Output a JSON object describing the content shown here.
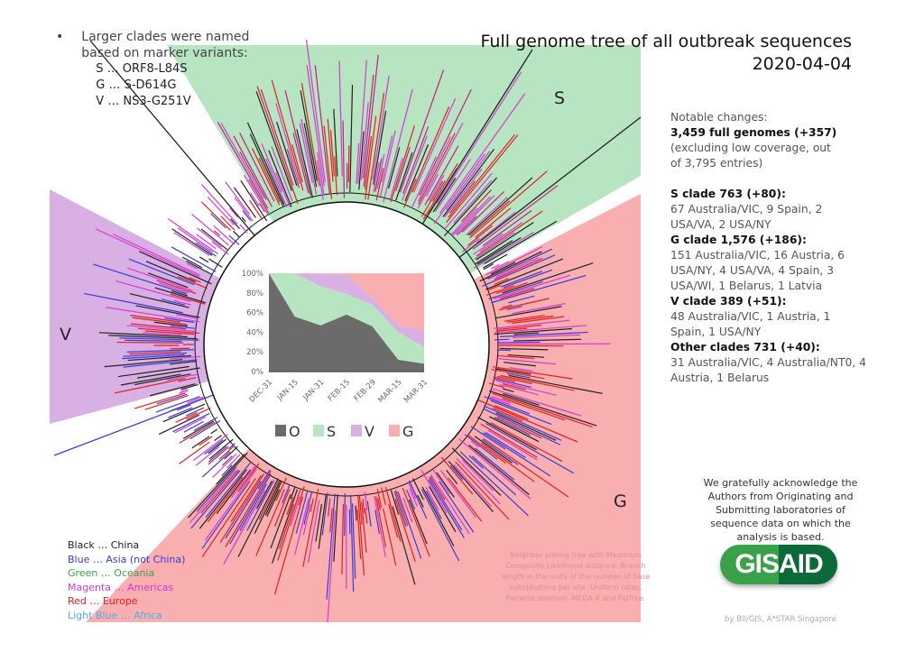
{
  "title": {
    "line1": "Full genome tree of all outbreak sequences",
    "line2": "2020-04-04"
  },
  "intro": {
    "bullet": "•",
    "text_line1": "Larger clades were named",
    "text_line2": "based on marker variants:",
    "markers": [
      "S … ORF8-L84S",
      "G … S-D614G",
      "V … NS3-G251V"
    ]
  },
  "clade_labels": {
    "S": "S",
    "V": "V",
    "G": "G"
  },
  "clade_colors": {
    "S": "#b7e4c1",
    "V": "#d9b0e3",
    "G": "#f9aeb0"
  },
  "notes": {
    "heading": "Notable changes:",
    "total": "3,459 full genomes (+357)",
    "total_detail": "(excluding low coverage, out of 3,795 entries)",
    "clades": [
      {
        "title": "S clade 763 (+80):",
        "detail": "67 Australia/VIC, 9 Spain, 2 USA/VA, 2 USA/NY"
      },
      {
        "title": "G clade 1,576 (+186):",
        "detail": "151 Australia/VIC, 16 Austria, 6 USA/NY, 4 USA/VA, 4 Spain, 3 USA/WI, 1 Belarus, 1 Latvia"
      },
      {
        "title": "V clade 389 (+51):",
        "detail": "48 Australia/VIC, 1 Austria, 1 Spain, 1 USA/NY"
      },
      {
        "title": "Other clades 731 (+40):",
        "detail": "31 Australia/VIC, 4 Australia/NT0, 4 Austria, 1 Belarus"
      }
    ]
  },
  "legend": [
    {
      "label": "Black … China",
      "color": "#222222"
    },
    {
      "label": "Blue … Asia (not China)",
      "color": "#3b3bd6"
    },
    {
      "label": "Green … Oceania",
      "color": "#3aa14a"
    },
    {
      "label": "Magenta … Americas",
      "color": "#d43bd4"
    },
    {
      "label": "Red … Europe",
      "color": "#e02020"
    },
    {
      "label": "Light Blue … Africa",
      "color": "#4aaee0"
    }
  ],
  "method_note": "Neighbor Joining tree with Maximum Composite Likelihood distance. Branch length in the units of the number of base substitutions per site. Uniform rates. Pairwise deletion. MEGA X and FigTree.",
  "acknowledgement": "We gratefully acknowledge the Authors from Originating and Submitting laboratories of sequence data on which the analysis is based.",
  "logo_text": "GISAID",
  "byline": "by BII/GIS, A*STAR Singapore",
  "chart_data": {
    "type": "area",
    "stacked": true,
    "categories": [
      "DEC-31",
      "JAN-15",
      "JAN-31",
      "FEB-15",
      "FEB-29",
      "MAR-15",
      "MAR-31"
    ],
    "series": [
      {
        "name": "O",
        "color": "#6b6b6b",
        "values": [
          100,
          56,
          47,
          58,
          46,
          12,
          8
        ]
      },
      {
        "name": "S",
        "color": "#b7e4c1",
        "values": [
          0,
          44,
          40,
          21,
          22,
          28,
          17
        ]
      },
      {
        "name": "V",
        "color": "#d9b0e3",
        "values": [
          0,
          0,
          12,
          19,
          7,
          7,
          17
        ]
      },
      {
        "name": "G",
        "color": "#f9aeb0",
        "values": [
          0,
          0,
          1,
          2,
          25,
          53,
          58
        ]
      }
    ],
    "yticks": [
      "0%",
      "20%",
      "40%",
      "60%",
      "80%",
      "100%"
    ],
    "ylim": [
      0,
      100
    ],
    "legend_position": "bottom"
  }
}
